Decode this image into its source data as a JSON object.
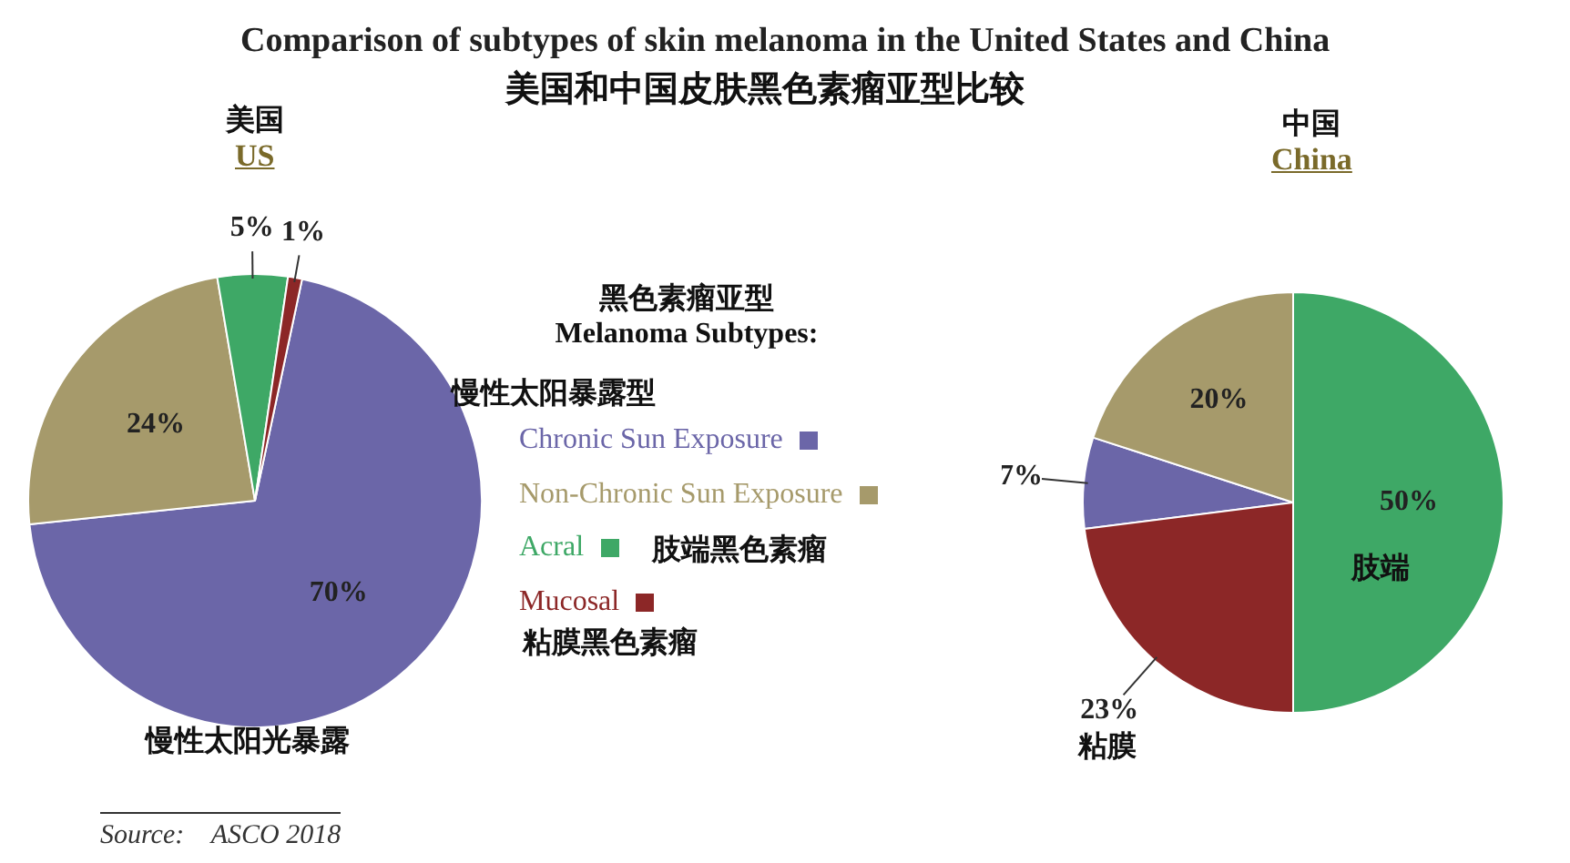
{
  "chart_data": [
    {
      "type": "other",
      "title": "Comparison of subtypes of skin melanoma in the United States and China",
      "subtitle": "美国和中国皮肤黑色素瘤亚型比较",
      "annotations": [
        "Source:    ASCO 2018"
      ]
    },
    {
      "type": "pie",
      "title": "美国",
      "subtitle": "US",
      "categories": [
        "Chronic Sun Exposure",
        "Non-Chronic Sun Exposure",
        "Acral",
        "Mucosal"
      ],
      "values": [
        70,
        24,
        5,
        1
      ],
      "colors": [
        "#6b66a8",
        "#a69a6b",
        "#3ea866",
        "#8c2727"
      ],
      "value_labels": [
        "70%",
        "24%",
        "5%",
        "1%"
      ],
      "legend": "right",
      "legend_title": "黑色素瘤亚型\nMelanoma Subtypes:",
      "annotations": [
        "慢性太阳暴露型",
        "肢端黑色素瘤",
        "粘膜黑色素瘤",
        "慢性太阳光暴露"
      ]
    },
    {
      "type": "pie",
      "title": "中国",
      "subtitle": "China",
      "categories": [
        null,
        null,
        null,
        null
      ],
      "values": [
        7,
        20,
        50,
        23
      ],
      "colors": [
        "#6b66a8",
        "#a69a6b",
        "#3ea866",
        "#8c2727"
      ],
      "value_labels": [
        "7%",
        "20%",
        "50%",
        "23%"
      ],
      "annotations": [
        "肢端",
        "粘膜"
      ]
    }
  ]
}
